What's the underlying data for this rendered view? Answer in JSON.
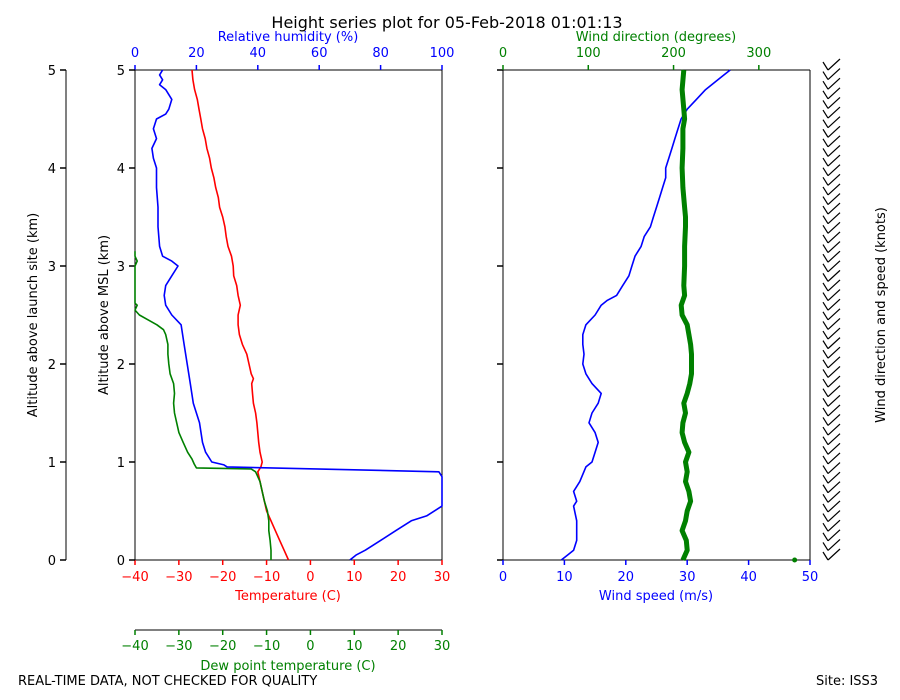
{
  "title": "Height series plot for 05-Feb-2018 01:01:13",
  "footer_left": "REAL-TIME DATA, NOT CHECKED FOR QUALITY",
  "footer_right": "Site: ISS3",
  "colors": {
    "red": "#ff0000",
    "green": "#008000",
    "blue": "#0000ff",
    "black": "#000000"
  },
  "chart_data": [
    {
      "type": "line",
      "panel": "thermodynamic",
      "ylabel_left_outer": "Altitude above launch site (km)",
      "ylabel_left_inner": "Altitude above MSL (km)",
      "ylim": [
        0,
        5
      ],
      "yticks": [
        "0",
        "1",
        "2",
        "3",
        "4",
        "5"
      ],
      "axes": {
        "temperature": {
          "label": "Temperature (C)",
          "lim": [
            -40,
            30
          ],
          "ticks": [
            "−40",
            "−30",
            "−20",
            "−10",
            "0",
            "10",
            "20",
            "30"
          ]
        },
        "dewpoint": {
          "label": "Dew point temperature (C)",
          "lim": [
            -40,
            30
          ],
          "ticks": [
            "−40",
            "−30",
            "−20",
            "−10",
            "0",
            "10",
            "20",
            "30"
          ]
        },
        "humidity": {
          "label": "Relative humidity (%)",
          "lim": [
            0,
            100
          ],
          "ticks": [
            "0",
            "20",
            "40",
            "60",
            "80",
            "100"
          ]
        }
      },
      "series": [
        {
          "name": "Temperature",
          "axis": "temperature",
          "color": "red",
          "points": [
            [
              -5,
              0
            ],
            [
              -6,
              0.1
            ],
            [
              -7,
              0.2
            ],
            [
              -8,
              0.3
            ],
            [
              -9,
              0.4
            ],
            [
              -10,
              0.5
            ],
            [
              -10.5,
              0.6
            ],
            [
              -11,
              0.7
            ],
            [
              -11.5,
              0.8
            ],
            [
              -12,
              0.9
            ],
            [
              -11.3,
              0.95
            ],
            [
              -11,
              1.0
            ],
            [
              -11.5,
              1.1
            ],
            [
              -11.8,
              1.2
            ],
            [
              -12,
              1.3
            ],
            [
              -12.2,
              1.4
            ],
            [
              -12.5,
              1.5
            ],
            [
              -13,
              1.6
            ],
            [
              -13.2,
              1.7
            ],
            [
              -13.4,
              1.8
            ],
            [
              -13,
              1.85
            ],
            [
              -13.5,
              1.9
            ],
            [
              -14,
              2.0
            ],
            [
              -14.5,
              2.1
            ],
            [
              -15.5,
              2.2
            ],
            [
              -16.2,
              2.3
            ],
            [
              -16.5,
              2.4
            ],
            [
              -16.5,
              2.5
            ],
            [
              -16,
              2.6
            ],
            [
              -16.5,
              2.7
            ],
            [
              -16.8,
              2.8
            ],
            [
              -17.5,
              2.9
            ],
            [
              -17.6,
              3.0
            ],
            [
              -18,
              3.1
            ],
            [
              -18.8,
              3.2
            ],
            [
              -19.2,
              3.3
            ],
            [
              -19.5,
              3.4
            ],
            [
              -20,
              3.5
            ],
            [
              -20.7,
              3.6
            ],
            [
              -21,
              3.7
            ],
            [
              -21.6,
              3.8
            ],
            [
              -22,
              3.9
            ],
            [
              -22.6,
              4.0
            ],
            [
              -23,
              4.1
            ],
            [
              -23.6,
              4.2
            ],
            [
              -24,
              4.3
            ],
            [
              -24.6,
              4.4
            ],
            [
              -25,
              4.5
            ],
            [
              -25.4,
              4.6
            ],
            [
              -25.8,
              4.7
            ],
            [
              -26.4,
              4.8
            ],
            [
              -26.8,
              4.9
            ],
            [
              -27,
              5.0
            ]
          ]
        },
        {
          "name": "Dew point temperature",
          "axis": "dewpoint",
          "color": "green",
          "points": [
            [
              -9,
              0
            ],
            [
              -9,
              0.1
            ],
            [
              -9.2,
              0.2
            ],
            [
              -9.5,
              0.3
            ],
            [
              -9.5,
              0.4
            ],
            [
              -9.8,
              0.5
            ],
            [
              -10.5,
              0.6
            ],
            [
              -11,
              0.7
            ],
            [
              -11.5,
              0.8
            ],
            [
              -12.5,
              0.9
            ],
            [
              -13.5,
              0.93
            ],
            [
              -26,
              0.94
            ],
            [
              -26.5,
              0.98
            ],
            [
              -27,
              1.03
            ],
            [
              -28,
              1.1
            ],
            [
              -29,
              1.2
            ],
            [
              -30,
              1.3
            ],
            [
              -30.5,
              1.4
            ],
            [
              -31,
              1.5
            ],
            [
              -31.2,
              1.6
            ],
            [
              -31,
              1.7
            ],
            [
              -31.2,
              1.8
            ],
            [
              -32,
              1.9
            ],
            [
              -32.3,
              2.0
            ],
            [
              -32.5,
              2.1
            ],
            [
              -32.5,
              2.2
            ],
            [
              -33,
              2.3
            ],
            [
              -33.5,
              2.35
            ],
            [
              -35,
              2.4
            ],
            [
              -37,
              2.45
            ],
            [
              -39,
              2.5
            ],
            [
              -40,
              2.55
            ],
            [
              -39.5,
              2.6
            ],
            [
              -40,
              2.62
            ],
            [
              -40,
              3.0
            ],
            [
              -39.5,
              3.05
            ],
            [
              -40,
              3.1
            ],
            [
              -40,
              3.15
            ]
          ]
        },
        {
          "name": "Relative humidity",
          "axis": "humidity",
          "color": "blue",
          "points": [
            [
              70,
              0
            ],
            [
              72,
              0.05
            ],
            [
              75,
              0.1
            ],
            [
              80,
              0.2
            ],
            [
              85,
              0.3
            ],
            [
              90,
              0.4
            ],
            [
              95,
              0.45
            ],
            [
              100,
              0.55
            ],
            [
              100,
              0.85
            ],
            [
              99,
              0.9
            ],
            [
              30,
              0.95
            ],
            [
              29,
              0.97
            ],
            [
              25,
              1.0
            ],
            [
              23,
              1.1
            ],
            [
              22,
              1.2
            ],
            [
              21,
              1.4
            ],
            [
              19,
              1.6
            ],
            [
              18,
              1.8
            ],
            [
              17,
              2.0
            ],
            [
              16,
              2.2
            ],
            [
              15,
              2.4
            ],
            [
              12,
              2.5
            ],
            [
              10,
              2.6
            ],
            [
              9.5,
              2.7
            ],
            [
              10,
              2.8
            ],
            [
              12,
              2.9
            ],
            [
              14,
              3.0
            ],
            [
              12,
              3.05
            ],
            [
              9,
              3.1
            ],
            [
              8,
              3.2
            ],
            [
              7.5,
              3.4
            ],
            [
              7.5,
              3.6
            ],
            [
              7,
              3.8
            ],
            [
              7,
              4.0
            ],
            [
              6,
              4.1
            ],
            [
              5.5,
              4.2
            ],
            [
              7,
              4.3
            ],
            [
              6,
              4.4
            ],
            [
              7,
              4.5
            ],
            [
              10,
              4.55
            ],
            [
              11,
              4.6
            ],
            [
              12,
              4.7
            ],
            [
              10,
              4.8
            ],
            [
              8,
              4.85
            ],
            [
              9,
              4.9
            ],
            [
              8,
              4.95
            ],
            [
              9,
              5.0
            ]
          ]
        }
      ]
    },
    {
      "type": "line",
      "panel": "wind",
      "ylim": [
        0,
        5
      ],
      "ylabel_right": "Wind direction and speed (knots)",
      "axes": {
        "wind_speed": {
          "label": "Wind speed (m/s)",
          "lim": [
            0,
            50
          ],
          "ticks": [
            "0",
            "10",
            "20",
            "30",
            "40",
            "50"
          ]
        },
        "wind_direction": {
          "label": "Wind direction (degrees)",
          "lim": [
            0,
            360
          ],
          "ticks": [
            "0",
            "100",
            "200",
            "300"
          ]
        }
      },
      "series": [
        {
          "name": "Wind speed",
          "axis": "wind_speed",
          "color": "blue",
          "points": [
            [
              9.5,
              0
            ],
            [
              10.5,
              0.05
            ],
            [
              11.5,
              0.1
            ],
            [
              12,
              0.2
            ],
            [
              12,
              0.4
            ],
            [
              11.5,
              0.55
            ],
            [
              12,
              0.6
            ],
            [
              11.5,
              0.7
            ],
            [
              12.5,
              0.8
            ],
            [
              13.5,
              0.95
            ],
            [
              14.5,
              1.0
            ],
            [
              15,
              1.1
            ],
            [
              15.5,
              1.2
            ],
            [
              15,
              1.3
            ],
            [
              14,
              1.4
            ],
            [
              14.5,
              1.5
            ],
            [
              15.5,
              1.6
            ],
            [
              16,
              1.7
            ],
            [
              14.5,
              1.8
            ],
            [
              13.5,
              1.9
            ],
            [
              13,
              2.0
            ],
            [
              13.2,
              2.1
            ],
            [
              13,
              2.2
            ],
            [
              13,
              2.3
            ],
            [
              13.5,
              2.4
            ],
            [
              15,
              2.5
            ],
            [
              16,
              2.6
            ],
            [
              17,
              2.65
            ],
            [
              18.5,
              2.7
            ],
            [
              19.5,
              2.8
            ],
            [
              20.5,
              2.9
            ],
            [
              21,
              3.0
            ],
            [
              21.5,
              3.1
            ],
            [
              22.5,
              3.2
            ],
            [
              23,
              3.3
            ],
            [
              24,
              3.4
            ],
            [
              24.5,
              3.5
            ],
            [
              25,
              3.6
            ],
            [
              25.5,
              3.7
            ],
            [
              26,
              3.8
            ],
            [
              26.5,
              3.9
            ],
            [
              26.5,
              4.0
            ],
            [
              27,
              4.1
            ],
            [
              27.5,
              4.2
            ],
            [
              28,
              4.3
            ],
            [
              28.5,
              4.4
            ],
            [
              29,
              4.5
            ],
            [
              30,
              4.6
            ],
            [
              31.5,
              4.7
            ],
            [
              33,
              4.8
            ],
            [
              35,
              4.9
            ],
            [
              36,
              4.95
            ],
            [
              37,
              5.0
            ]
          ]
        },
        {
          "name": "Wind direction",
          "axis": "wind_direction",
          "color": "green",
          "points": [
            [
              211,
              0
            ],
            [
              216,
              0.1
            ],
            [
              215,
              0.2
            ],
            [
              210,
              0.3
            ],
            [
              214,
              0.4
            ],
            [
              216,
              0.5
            ],
            [
              220,
              0.6
            ],
            [
              218,
              0.7
            ],
            [
              214,
              0.8
            ],
            [
              216,
              0.9
            ],
            [
              214,
              1.0
            ],
            [
              218,
              1.1
            ],
            [
              213,
              1.2
            ],
            [
              210,
              1.3
            ],
            [
              211,
              1.4
            ],
            [
              214,
              1.5
            ],
            [
              212,
              1.6
            ],
            [
              216,
              1.7
            ],
            [
              219,
              1.8
            ],
            [
              221,
              1.9
            ],
            [
              221,
              2.0
            ],
            [
              221,
              2.1
            ],
            [
              220,
              2.2
            ],
            [
              218,
              2.3
            ],
            [
              216,
              2.4
            ],
            [
              210,
              2.5
            ],
            [
              209,
              2.6
            ],
            [
              213,
              2.7
            ],
            [
              212,
              2.8
            ],
            [
              213,
              3.0
            ],
            [
              213,
              3.2
            ],
            [
              214,
              3.4
            ],
            [
              214,
              3.5
            ],
            [
              213,
              3.6
            ],
            [
              211,
              3.8
            ],
            [
              210,
              4.0
            ],
            [
              211,
              4.2
            ],
            [
              211,
              4.4
            ],
            [
              213,
              4.5
            ],
            [
              212,
              4.6
            ],
            [
              210,
              4.8
            ],
            [
              212,
              5.0
            ]
          ]
        },
        {
          "name": "Wind speed (launch point)",
          "axis": "wind_speed",
          "color": "green",
          "points": [
            [
              47.5,
              0
            ]
          ]
        }
      ],
      "wind_barbs": {
        "count": 52,
        "altitude_range_km": [
          0,
          5
        ],
        "direction_degrees": 212
      }
    }
  ]
}
